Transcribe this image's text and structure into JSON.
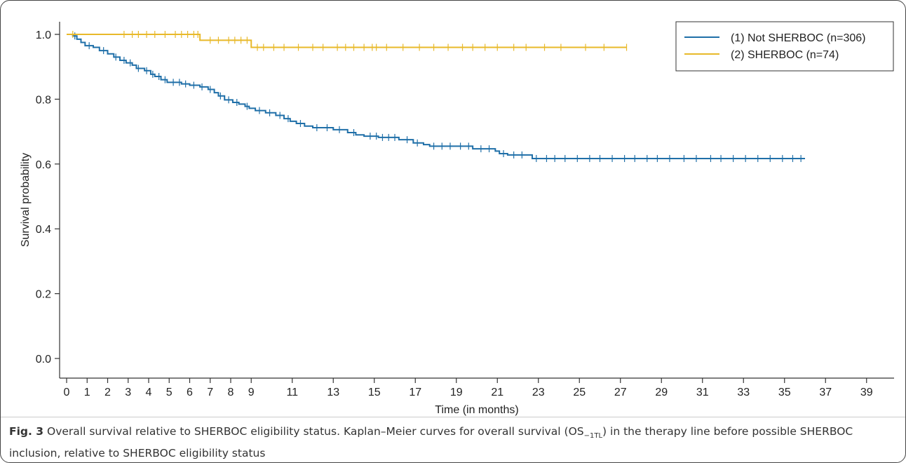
{
  "figure": {
    "label": "Fig. 3",
    "caption_pre": " Overall survival relative to SHERBOC eligibility status. Kaplan–Meier curves for overall survival (OS",
    "caption_sub": "−1TL",
    "caption_post": ") in the therapy line before possible SHERBOC inclusion, relative to SHERBOC eligibility status"
  },
  "chart_data": {
    "type": "line",
    "subtype": "kaplan-meier",
    "xlabel": "Time (in months)",
    "ylabel": "Survival probability",
    "xlim": [
      0,
      40
    ],
    "ylim": [
      0,
      1.0
    ],
    "xticks": [
      "0",
      "1",
      "2",
      "3",
      "4",
      "5",
      "6",
      "7",
      "8",
      "9",
      "11",
      "13",
      "15",
      "17",
      "19",
      "21",
      "23",
      "25",
      "27",
      "29",
      "31",
      "33",
      "35",
      "37",
      "39"
    ],
    "xtick_values": [
      0,
      1,
      2,
      3,
      4,
      5,
      6,
      7,
      8,
      9,
      11,
      13,
      15,
      17,
      19,
      21,
      23,
      25,
      27,
      29,
      31,
      33,
      35,
      37,
      39
    ],
    "yticks": [
      "0.0",
      "0.2",
      "0.4",
      "0.6",
      "0.8",
      "1.0"
    ],
    "ytick_values": [
      0,
      0.2,
      0.4,
      0.6,
      0.8,
      1.0
    ],
    "legend_position": "top-right",
    "series": [
      {
        "name": "(1) Not SHERBOC (n=306)",
        "color": "#1f6fa8",
        "steps": [
          [
            0,
            1.0
          ],
          [
            0.3,
            0.995
          ],
          [
            0.5,
            0.985
          ],
          [
            0.7,
            0.975
          ],
          [
            0.9,
            0.965
          ],
          [
            1.3,
            0.96
          ],
          [
            1.6,
            0.95
          ],
          [
            2.0,
            0.94
          ],
          [
            2.3,
            0.93
          ],
          [
            2.6,
            0.92
          ],
          [
            2.9,
            0.912
          ],
          [
            3.2,
            0.905
          ],
          [
            3.4,
            0.895
          ],
          [
            3.8,
            0.888
          ],
          [
            4.1,
            0.877
          ],
          [
            4.3,
            0.87
          ],
          [
            4.6,
            0.86
          ],
          [
            4.9,
            0.852
          ],
          [
            5.6,
            0.847
          ],
          [
            6.0,
            0.843
          ],
          [
            6.5,
            0.838
          ],
          [
            6.9,
            0.83
          ],
          [
            7.2,
            0.82
          ],
          [
            7.4,
            0.81
          ],
          [
            7.7,
            0.798
          ],
          [
            8.1,
            0.79
          ],
          [
            8.4,
            0.785
          ],
          [
            8.7,
            0.778
          ],
          [
            8.9,
            0.772
          ],
          [
            9.2,
            0.765
          ],
          [
            9.7,
            0.758
          ],
          [
            10.2,
            0.75
          ],
          [
            10.6,
            0.74
          ],
          [
            10.9,
            0.732
          ],
          [
            11.2,
            0.725
          ],
          [
            11.6,
            0.717
          ],
          [
            12.0,
            0.712
          ],
          [
            13.0,
            0.706
          ],
          [
            13.7,
            0.697
          ],
          [
            14.1,
            0.69
          ],
          [
            14.5,
            0.686
          ],
          [
            15.2,
            0.682
          ],
          [
            16.2,
            0.675
          ],
          [
            16.9,
            0.665
          ],
          [
            17.4,
            0.66
          ],
          [
            17.7,
            0.655
          ],
          [
            19.8,
            0.647
          ],
          [
            20.9,
            0.64
          ],
          [
            21.1,
            0.632
          ],
          [
            21.5,
            0.628
          ],
          [
            22.7,
            0.617
          ],
          [
            36.0,
            0.617
          ]
        ],
        "censor_times": [
          0.4,
          1.1,
          1.8,
          2.4,
          2.8,
          3.1,
          3.5,
          3.9,
          4.2,
          4.5,
          4.8,
          5.2,
          5.5,
          5.8,
          6.2,
          6.6,
          7.0,
          7.5,
          7.9,
          8.3,
          8.8,
          9.4,
          9.9,
          10.4,
          10.8,
          11.4,
          12.2,
          12.7,
          13.3,
          14.0,
          14.8,
          15.1,
          15.4,
          15.7,
          16.0,
          16.6,
          17.1,
          17.9,
          18.3,
          18.7,
          19.2,
          19.6,
          20.2,
          20.6,
          21.3,
          21.8,
          22.2,
          22.9,
          23.4,
          23.8,
          24.3,
          24.9,
          25.5,
          26.0,
          26.6,
          27.2,
          27.7,
          28.3,
          28.8,
          29.4,
          30.1,
          30.7,
          31.4,
          31.9,
          32.5,
          33.1,
          33.7,
          34.3,
          34.9,
          35.4,
          35.8
        ]
      },
      {
        "name": "(2) SHERBOC (n=74)",
        "color": "#e8b92a",
        "steps": [
          [
            0,
            1.0
          ],
          [
            6.5,
            0.982
          ],
          [
            9.0,
            0.96
          ],
          [
            27.3,
            0.96
          ]
        ],
        "censor_times": [
          0.3,
          2.8,
          3.2,
          3.5,
          3.9,
          4.3,
          4.8,
          5.3,
          5.6,
          5.9,
          6.2,
          6.4,
          7.0,
          7.4,
          7.9,
          8.2,
          8.5,
          8.8,
          9.3,
          9.6,
          10.1,
          10.6,
          11.3,
          12.0,
          12.5,
          13.2,
          13.6,
          14.0,
          14.5,
          14.9,
          15.1,
          15.6,
          16.4,
          17.2,
          17.9,
          18.6,
          19.3,
          19.8,
          20.4,
          21.0,
          21.8,
          22.4,
          23.3,
          24.1,
          25.3,
          26.2,
          27.3
        ]
      }
    ]
  }
}
